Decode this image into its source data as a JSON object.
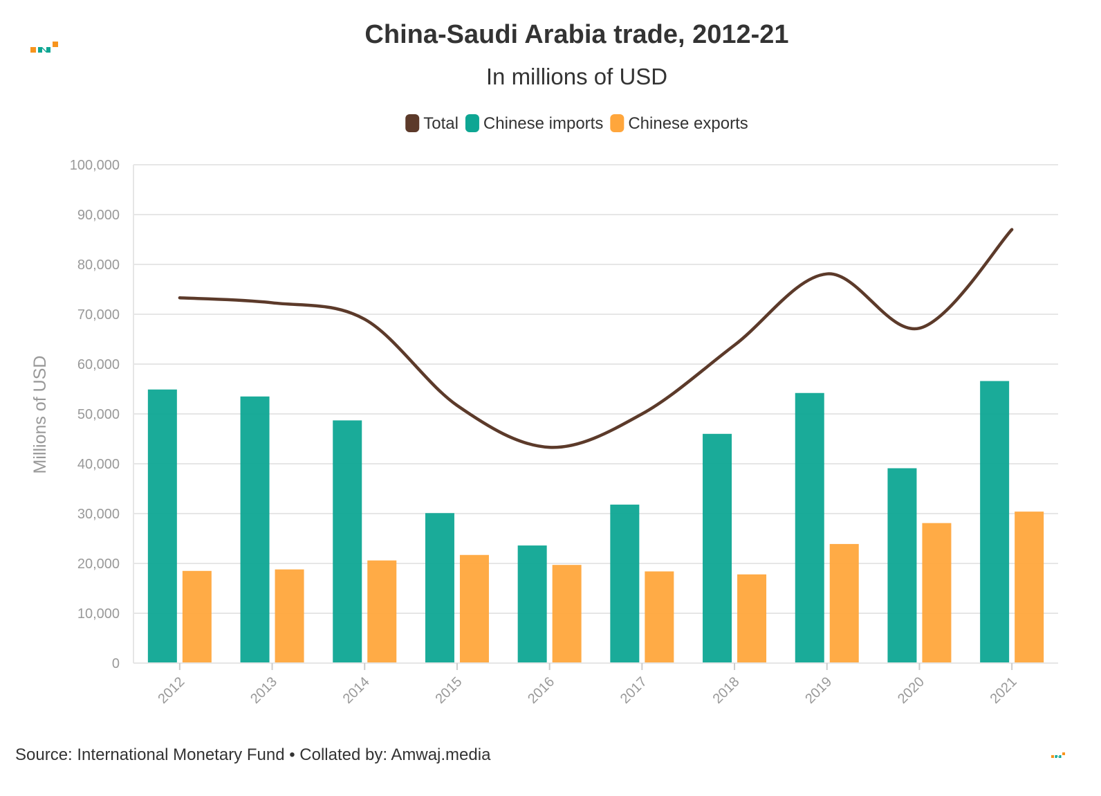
{
  "chart_data": {
    "type": "bar",
    "title": "China-Saudi Arabia trade, 2012-21",
    "subtitle": "In millions of USD",
    "ylabel": "Millions of USD",
    "xlabel": "",
    "ylim": [
      0,
      100000
    ],
    "yticks": [
      0,
      10000,
      20000,
      30000,
      40000,
      50000,
      60000,
      70000,
      80000,
      90000,
      100000
    ],
    "ytick_labels": [
      "0",
      "10,000",
      "20,000",
      "30,000",
      "40,000",
      "50,000",
      "60,000",
      "70,000",
      "80,000",
      "90,000",
      "100,000"
    ],
    "grid": true,
    "legend_position": "top-center",
    "categories": [
      "2012",
      "2013",
      "2014",
      "2015",
      "2016",
      "2017",
      "2018",
      "2019",
      "2020",
      "2021"
    ],
    "series": [
      {
        "name": "Total",
        "type": "line",
        "color": "#5c3a2a",
        "values": [
          73300,
          72300,
          69000,
          51700,
          43300,
          50000,
          63800,
          78100,
          67200,
          87000
        ]
      },
      {
        "name": "Chinese imports",
        "type": "bar",
        "color": "#0ea693",
        "values": [
          54900,
          53500,
          48700,
          30100,
          23600,
          31800,
          46000,
          54200,
          39100,
          56600
        ]
      },
      {
        "name": "Chinese exports",
        "type": "bar",
        "color": "#ffa63c",
        "values": [
          18500,
          18800,
          20600,
          21700,
          19700,
          18400,
          17800,
          23900,
          28100,
          30400
        ]
      }
    ]
  },
  "footer": {
    "source": "Source: International Monetary Fund • Collated by: Amwaj.media"
  },
  "brand": {
    "colors": {
      "orange": "#f7941d",
      "teal": "#0ea693"
    },
    "logo_icon": "amwaj-logo-icon"
  }
}
